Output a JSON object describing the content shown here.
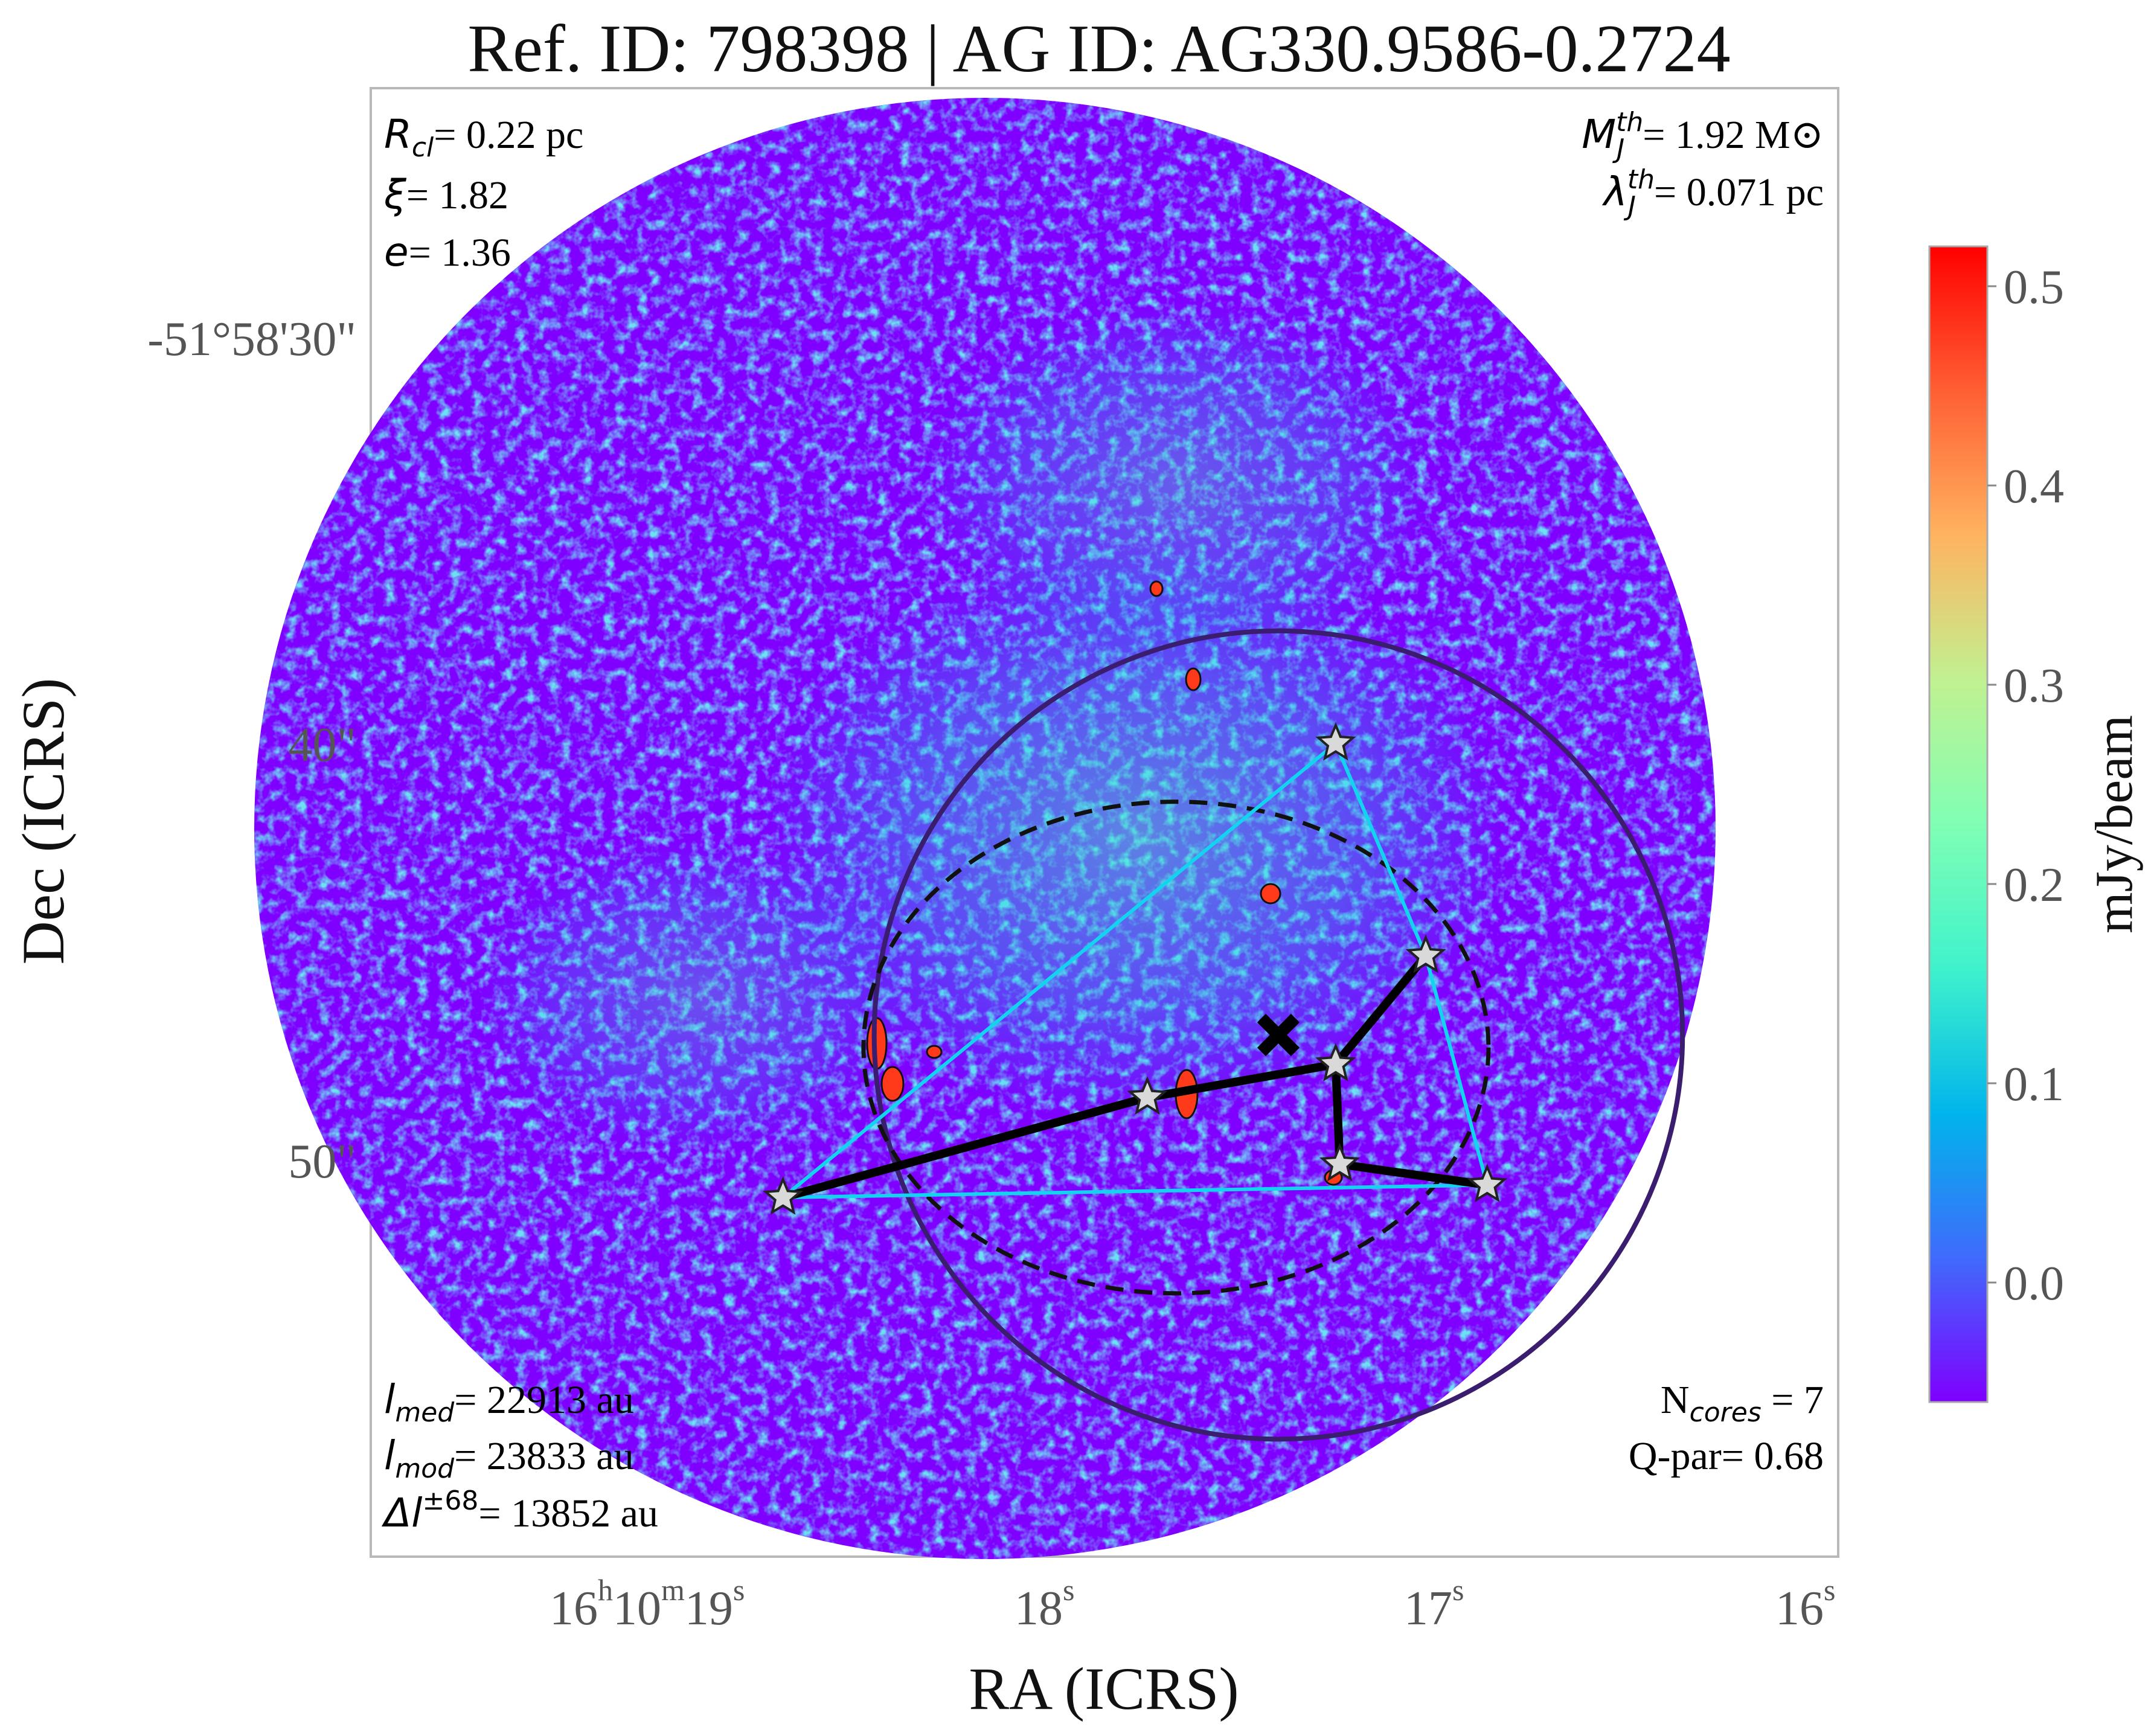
{
  "title": "Ref. ID: 798398 | AG ID: AG330.9586-0.2724",
  "annotations": {
    "r_cl": {
      "sym": "R",
      "sub": "cl",
      "text": "= 0.22 pc"
    },
    "xi": {
      "sym": "ξ",
      "text": "= 1.82"
    },
    "e": {
      "sym": "e",
      "text": "= 1.36"
    },
    "mj": {
      "sym": "M",
      "sub": "J",
      "sup": "th",
      "text": "= 1.92 M⊙"
    },
    "lj": {
      "sym": "λ",
      "sub": "J",
      "sup": "th",
      "text": "= 0.071 pc"
    },
    "l_med": {
      "sym": "l",
      "sub": "med",
      "text": "= 22913 au"
    },
    "l_mod": {
      "sym": "l",
      "sub": "mod",
      "text": "= 23833 au"
    },
    "dl": {
      "sym": "Δl",
      "sup": "±68",
      "text": "= 13852 au"
    },
    "ncores": {
      "prefix": "N",
      "sub": "cores",
      "text": " = 7"
    },
    "qpar": {
      "text": "Q-par= 0.68"
    }
  },
  "axes": {
    "xlabel": "RA (ICRS)",
    "ylabel": "Dec (ICRS)",
    "xticks": [
      {
        "label": "16h10m19s",
        "parts": [
          "16",
          "h",
          "10",
          "m",
          "19",
          "s"
        ]
      },
      {
        "label": "18s",
        "parts": [
          "18",
          "s"
        ]
      },
      {
        "label": "17s",
        "parts": [
          "17",
          "s"
        ]
      },
      {
        "label": "16s",
        "parts": [
          "16",
          "s"
        ]
      }
    ],
    "yticks": [
      "-51°58'30\"",
      "40\"",
      "50\""
    ]
  },
  "colorbar": {
    "label": "mJy/beam",
    "ticks": [
      "0.5",
      "0.4",
      "0.3",
      "0.2",
      "0.1",
      "0.0"
    ],
    "range": [
      -0.06,
      0.52
    ],
    "colormap": "rainbow",
    "colors": [
      "#7f00ff",
      "#3f6bfc",
      "#00b5eb",
      "#3ff2cc",
      "#80ffb4",
      "#c1f191",
      "#ffb360",
      "#ff5f33",
      "#ff0000"
    ]
  },
  "chart_data": {
    "type": "scatter",
    "description_kind": "continuum map with core positions and minimum spanning tree",
    "image_extent_ra_s": [
      19.3,
      16.0
    ],
    "image_extent_dec_arcsec": [
      -28.3,
      -60.0
    ],
    "ra_ticks_s": [
      19,
      18,
      17,
      16
    ],
    "dec_ticks_arcsec": [
      30,
      40,
      50
    ],
    "cores": [
      {
        "id": 1,
        "ra_s": 17.63,
        "dec_arcsec": 39.9
      },
      {
        "id": 2,
        "ra_s": 17.41,
        "dec_arcsec": 45.0
      },
      {
        "id": 3,
        "ra_s": 17.63,
        "dec_arcsec": 47.6
      },
      {
        "id": 4,
        "ra_s": 17.62,
        "dec_arcsec": 50.0
      },
      {
        "id": 5,
        "ra_s": 17.26,
        "dec_arcsec": 50.5
      },
      {
        "id": 6,
        "ra_s": 18.09,
        "dec_arcsec": 48.4
      },
      {
        "id": 7,
        "ra_s": 18.98,
        "dec_arcsec": 50.8
      }
    ],
    "mst_edges": [
      [
        2,
        3
      ],
      [
        3,
        6
      ],
      [
        6,
        7
      ],
      [
        3,
        4
      ],
      [
        4,
        5
      ]
    ],
    "hull": [
      1,
      2,
      5,
      7
    ],
    "center_marker": {
      "ra_s": 17.77,
      "dec_arcsec": 46.9
    },
    "cluster_circle": {
      "ra_s": 17.77,
      "dec_arcsec": 46.9,
      "radius_arcsec": 9.7
    },
    "dashed_ellipse": {
      "ra_s": 18.02,
      "dec_arcsec": 47.2,
      "rx_arcsec": 7.5,
      "ry_arcsec": 5.9
    }
  }
}
